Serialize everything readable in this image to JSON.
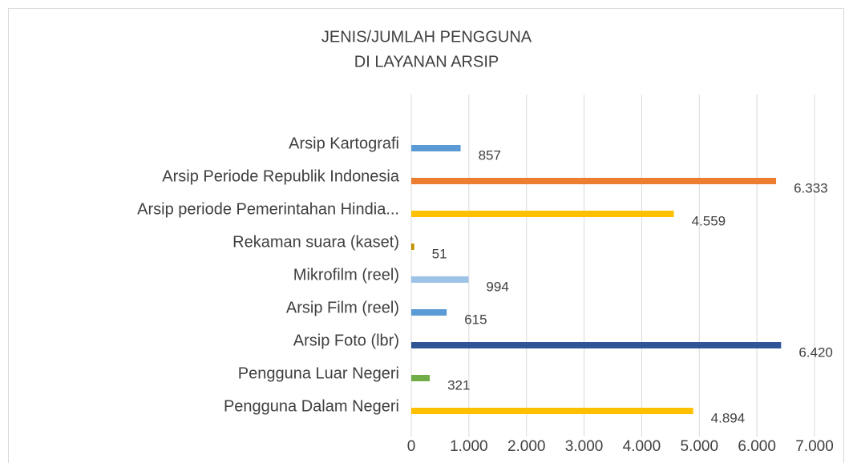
{
  "chart_data": {
    "type": "hbar",
    "title": [
      "JENIS/JUMLAH PENGGUNA",
      "DI LAYANAN ARSIP"
    ],
    "categories": [
      "Arsip Kartografi",
      "Arsip Periode Republik Indonesia",
      "Arsip periode Pemerintahan Hindia...",
      "Rekaman suara (kaset)",
      "Mikrofilm (reel)",
      "Arsip Film (reel)",
      "Arsip Foto (lbr)",
      "Pengguna Luar Negeri",
      "Pengguna Dalam Negeri"
    ],
    "values": [
      857,
      6333,
      4559,
      51,
      994,
      615,
      6420,
      321,
      4894
    ],
    "value_labels": [
      "857",
      "6.333",
      "4.559",
      "51",
      "994",
      "615",
      "6.420",
      "321",
      "4.894"
    ],
    "colors": [
      "#5b9bd5",
      "#ed7d31",
      "#ffc000",
      "#bf9000",
      "#9dc3e6",
      "#5b9bd5",
      "#2f5597",
      "#70ad47",
      "#ffc000"
    ],
    "xlim": [
      0,
      7000
    ],
    "xticks": [
      0,
      {
        "value": 1000,
        "label": "1.000"
      },
      {
        "value": 2000,
        "label": "2.000"
      },
      {
        "value": 3000,
        "label": "3.000"
      },
      {
        "value": 4000,
        "label": "4.000"
      },
      {
        "value": 5000,
        "label": "5.000"
      },
      {
        "value": 6000,
        "label": "6.000"
      },
      {
        "value": 7000,
        "label": "7.000"
      }
    ],
    "grid": true
  }
}
